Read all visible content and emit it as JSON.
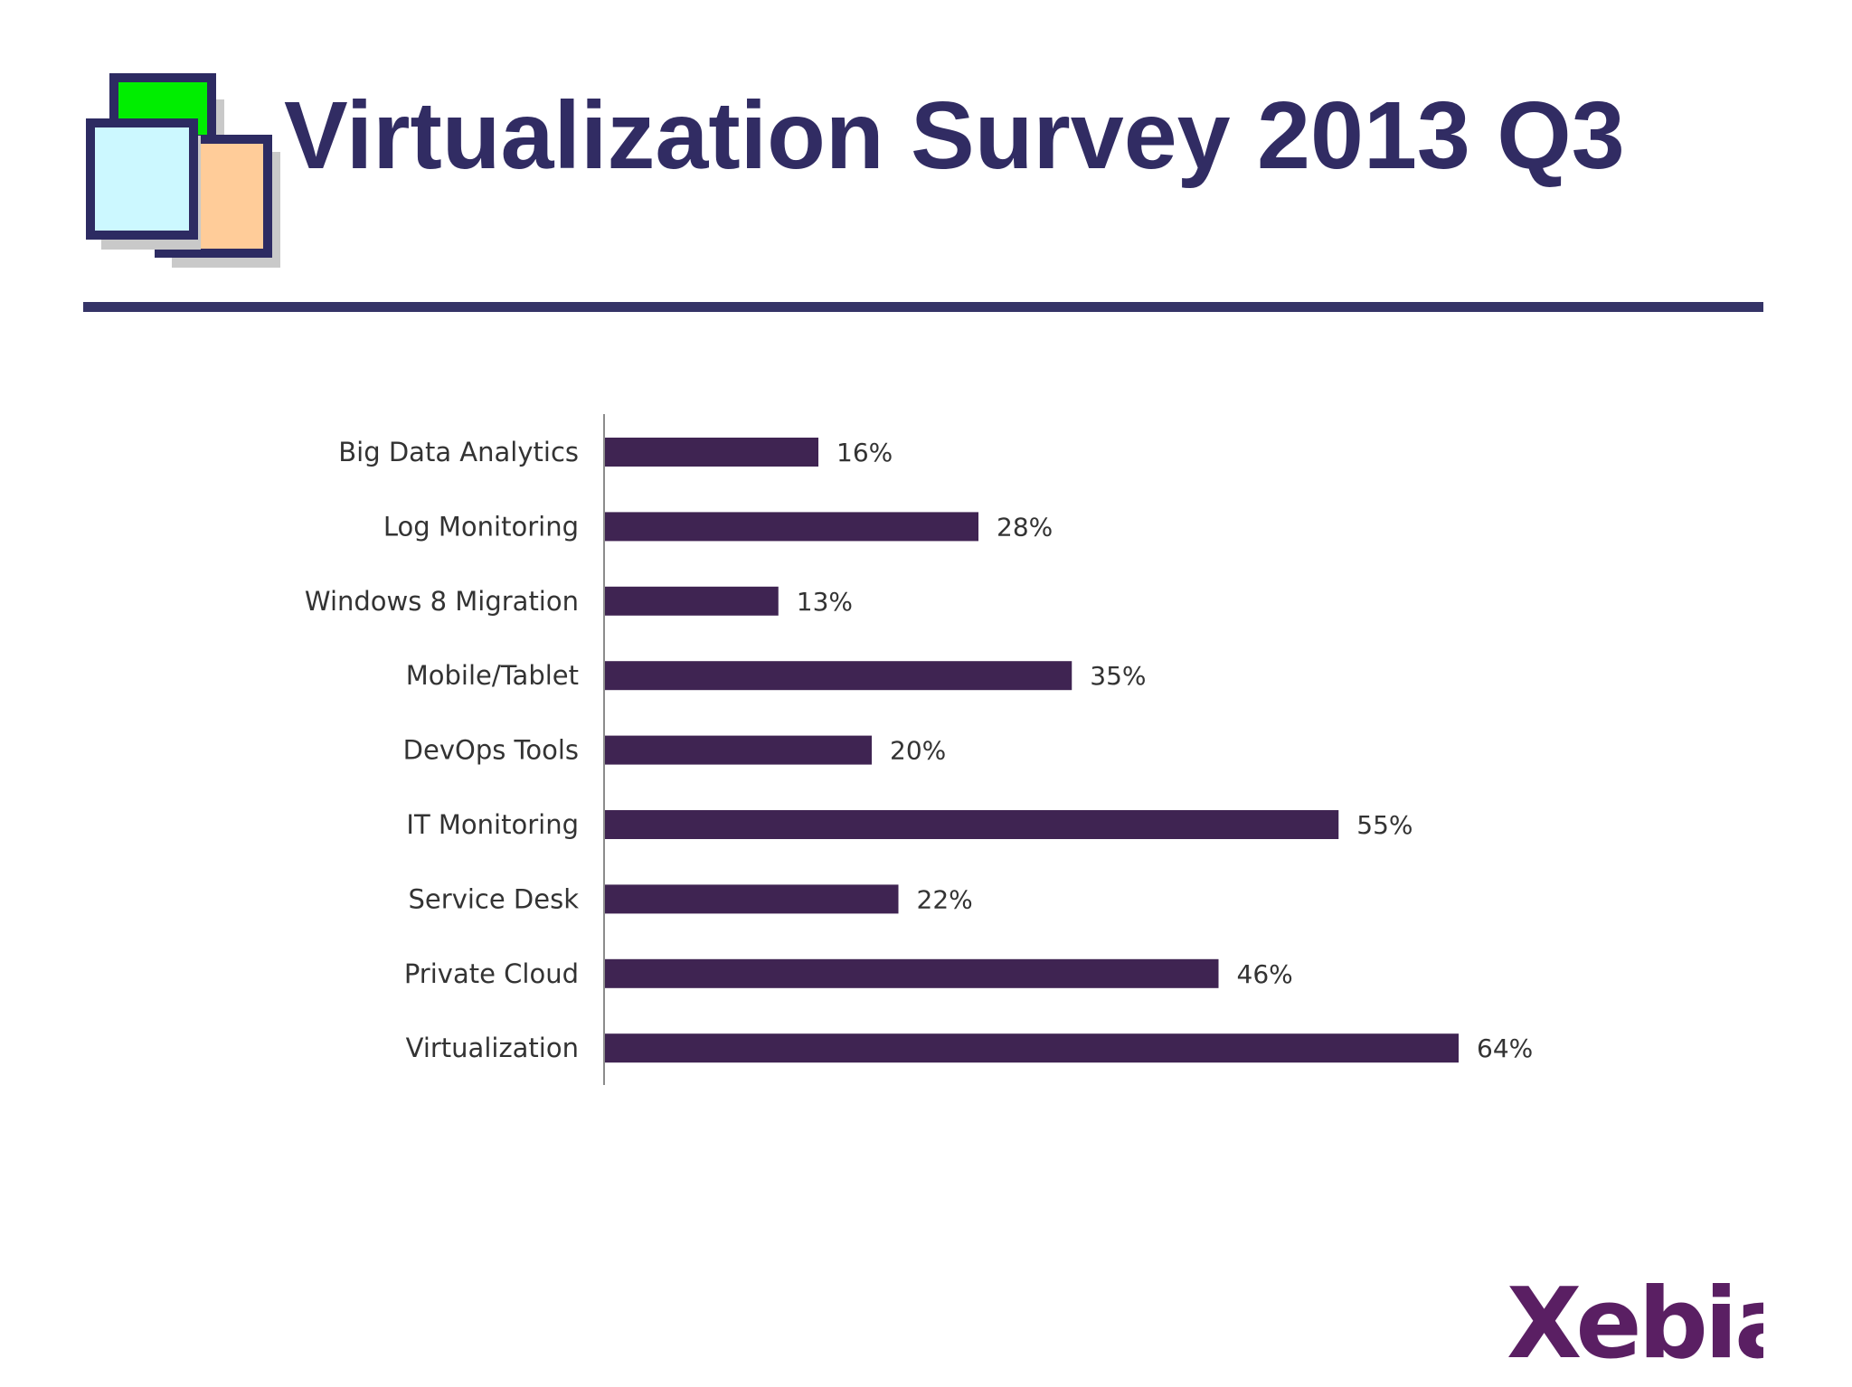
{
  "slide": {
    "title": "Virtualization Survey 2013 Q3",
    "logo_text": "Xebia"
  },
  "colors": {
    "title": "#312c63",
    "rule": "#353467",
    "bar": "#3f2452",
    "axis": "#8c8c8c",
    "label_text": "#333333",
    "icon_green": "#00ee00",
    "icon_cyan": "#ccf8ff",
    "icon_peach": "#ffcc99",
    "icon_border": "#2d2b62",
    "icon_shadow": "#c9c9c9",
    "logo": "#5a1f63"
  },
  "chart_data": {
    "type": "bar",
    "orientation": "horizontal",
    "title": "",
    "xlabel": "",
    "ylabel": "",
    "value_suffix": "%",
    "grid": false,
    "legend": "none",
    "xlim": [
      0,
      64
    ],
    "categories": [
      "Big Data Analytics",
      "Log Monitoring",
      "Windows 8 Migration",
      "Mobile/Tablet",
      "DevOps Tools",
      "IT Monitoring",
      "Service Desk",
      "Private Cloud",
      "Virtualization"
    ],
    "values": [
      16,
      28,
      13,
      35,
      20,
      55,
      22,
      46,
      64
    ],
    "data_labels": [
      "16%",
      "28%",
      "13%",
      "35%",
      "20%",
      "55%",
      "22%",
      "46%",
      "64%"
    ]
  }
}
